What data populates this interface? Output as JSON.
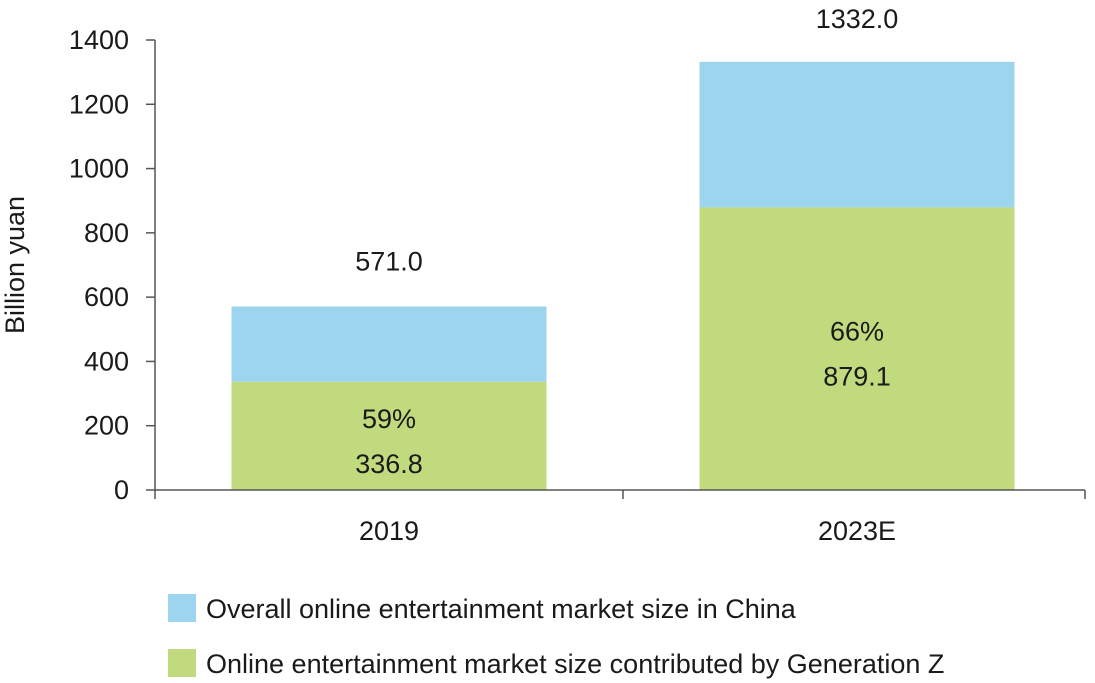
{
  "chart_data": {
    "type": "bar",
    "stacked": true,
    "categories": [
      "2019",
      "2023E"
    ],
    "ylabel": "Billion yuan",
    "ylim": [
      0,
      1400
    ],
    "y_ticks": [
      "0",
      "200",
      "400",
      "600",
      "800",
      "1000",
      "1200",
      "1400"
    ],
    "grid": false,
    "legend_position": "bottom",
    "series": [
      {
        "name": "Online entertainment market size contributed by Generation Z",
        "color": "#c0da7d",
        "values": [
          336.8,
          879.1
        ],
        "share_labels": [
          "59%",
          "66%"
        ],
        "value_labels": [
          "336.8",
          "879.1"
        ]
      },
      {
        "name": "Overall online entertainment market size in China",
        "color": "#9dd5ef",
        "values": [
          234.2,
          452.9
        ]
      }
    ],
    "totals": [
      571.0,
      1332.0
    ],
    "total_labels": [
      "571.0",
      "1332.0"
    ]
  }
}
